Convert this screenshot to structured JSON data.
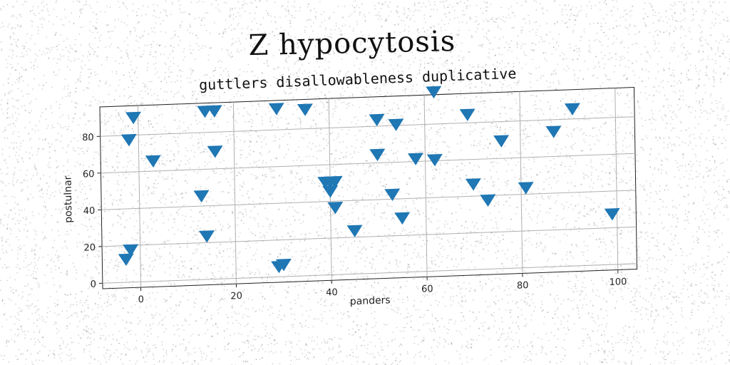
{
  "title": "Z hypocytosis",
  "chart_data": {
    "type": "scatter",
    "subtitle": "guttlers disallowableness duplicative",
    "xlabel": "panders",
    "ylabel": "postulnar",
    "xlim": [
      -8,
      104
    ],
    "ylim": [
      -3,
      96
    ],
    "xticks": [
      0,
      20,
      40,
      60,
      80,
      100
    ],
    "yticks": [
      0,
      20,
      40,
      60,
      80
    ],
    "grid": true,
    "marker": "triangle-down",
    "color": "#1f77b4",
    "x": [
      -1,
      -2,
      3,
      14,
      16,
      16,
      29,
      35,
      13,
      14,
      -3,
      -2,
      29,
      30,
      39,
      40,
      41,
      40,
      41,
      45,
      50,
      50,
      54,
      53,
      58,
      62,
      62,
      69,
      70,
      76,
      73,
      81,
      87,
      91,
      55,
      99
    ],
    "y": [
      90,
      78,
      66,
      92,
      92,
      70,
      92,
      91,
      46,
      24,
      13,
      18,
      6,
      7,
      51,
      51,
      51,
      46,
      37,
      24,
      84,
      65,
      81,
      43,
      62,
      61,
      98,
      85,
      47,
      70,
      38,
      44,
      74,
      86,
      30,
      28
    ]
  }
}
